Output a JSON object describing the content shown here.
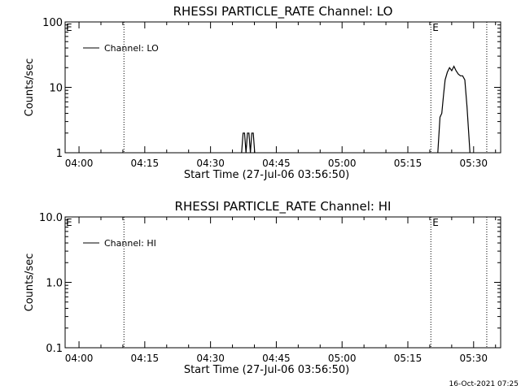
{
  "footer": {
    "timestamp": "16-Oct-2021 07:25"
  },
  "chart_data": [
    {
      "type": "line",
      "title": "RHESSI PARTICLE_RATE Channel: LO",
      "xlabel": "Start Time (27-Jul-06 03:56:50)",
      "ylabel": "Counts/sec",
      "yscale": "log",
      "ylim": [
        1,
        100
      ],
      "xlim": [
        "03:56:50",
        "05:36:10"
      ],
      "x_ticks": [
        "04:00",
        "04:15",
        "04:30",
        "04:45",
        "05:00",
        "05:15",
        "05:30"
      ],
      "y_ticks": [
        "1",
        "10",
        "100"
      ],
      "legend": {
        "placement": "top-left",
        "entries": [
          "Channel: LO"
        ]
      },
      "markers": [
        {
          "x": "04:10:15",
          "label": ""
        },
        {
          "x": "05:20:15",
          "label": "E"
        },
        {
          "x": "05:33:00",
          "label": ""
        }
      ],
      "corner_labels": [
        "E"
      ],
      "series": [
        {
          "name": "Channel: LO",
          "segments": [
            {
              "x": [
                "04:37:05",
                "04:37:25",
                "04:37:45",
                "04:38:05",
                "04:38:25",
                "04:38:45",
                "04:39:05",
                "04:39:25",
                "04:39:45",
                "04:40:05"
              ],
              "y": [
                1,
                2,
                2,
                1,
                2,
                2,
                1,
                2,
                2,
                1
              ]
            },
            {
              "x": [
                "05:21:50",
                "05:22:20",
                "05:22:45",
                "05:23:10",
                "05:23:30",
                "05:24:00",
                "05:24:30",
                "05:25:00",
                "05:25:30",
                "05:26:00",
                "05:26:30",
                "05:27:00",
                "05:27:30",
                "05:28:00",
                "05:28:30",
                "05:29:10"
              ],
              "y": [
                1,
                3.5,
                4,
                8,
                13,
                17,
                20,
                18,
                21,
                18,
                16,
                15,
                15,
                13,
                5,
                1
              ]
            }
          ]
        }
      ]
    },
    {
      "type": "line",
      "title": "RHESSI PARTICLE_RATE Channel: HI",
      "xlabel": "Start Time (27-Jul-06 03:56:50)",
      "ylabel": "Counts/sec",
      "yscale": "log",
      "ylim": [
        0.1,
        10.0
      ],
      "xlim": [
        "03:56:50",
        "05:36:10"
      ],
      "x_ticks": [
        "04:00",
        "04:15",
        "04:30",
        "04:45",
        "05:00",
        "05:15",
        "05:30"
      ],
      "y_ticks": [
        "0.1",
        "1.0",
        "10.0"
      ],
      "legend": {
        "placement": "top-left",
        "entries": [
          "Channel: HI"
        ]
      },
      "markers": [
        {
          "x": "04:10:15",
          "label": ""
        },
        {
          "x": "05:20:15",
          "label": "E"
        },
        {
          "x": "05:33:00",
          "label": ""
        }
      ],
      "corner_labels": [
        "E"
      ],
      "series": [
        {
          "name": "Channel: HI",
          "segments": []
        }
      ]
    }
  ]
}
